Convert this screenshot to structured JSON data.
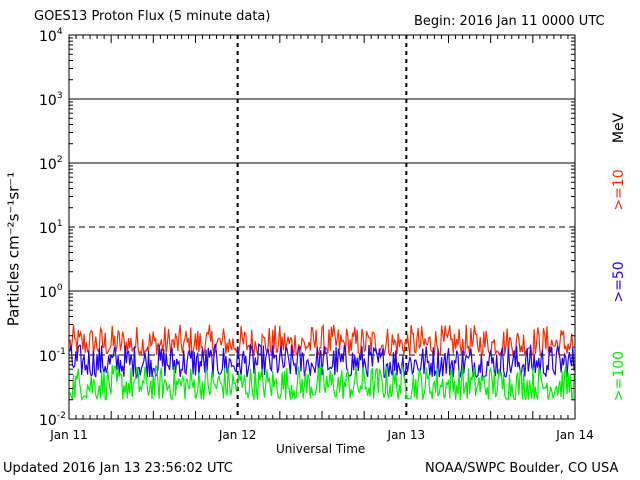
{
  "header": {
    "title": "GOES13 Proton Flux (5 minute data)",
    "begin": "Begin: 2016 Jan 11 0000 UTC"
  },
  "footer": {
    "updated": "Updated 2016 Jan 13 23:56:02 UTC",
    "credit": "NOAA/SWPC Boulder, CO USA"
  },
  "chart_data": {
    "type": "line",
    "xlabel": "Universal Time",
    "ylabel": "Particles cm⁻²s⁻¹sr⁻¹",
    "y_scale": "log",
    "ylim": [
      0.01,
      10000
    ],
    "y_ticks": [
      {
        "base": "10",
        "exp": "4"
      },
      {
        "base": "10",
        "exp": "3"
      },
      {
        "base": "10",
        "exp": "2"
      },
      {
        "base": "10",
        "exp": "1"
      },
      {
        "base": "10",
        "exp": "0"
      },
      {
        "base": "10",
        "exp": "-1"
      },
      {
        "base": "10",
        "exp": "-2"
      }
    ],
    "x_ticks": [
      "Jan 11",
      "Jan 12",
      "Jan 13",
      "Jan 14"
    ],
    "grid": true,
    "unit_label": "MeV",
    "series": [
      {
        "name": ">=10",
        "color": "#ff2a00",
        "typical_range": [
          0.1,
          0.3
        ]
      },
      {
        "name": ">=50",
        "color": "#2000ff",
        "typical_range": [
          0.045,
          0.15
        ]
      },
      {
        "name": ">=100",
        "color": "#00f000",
        "typical_range": [
          0.02,
          0.07
        ]
      }
    ]
  }
}
